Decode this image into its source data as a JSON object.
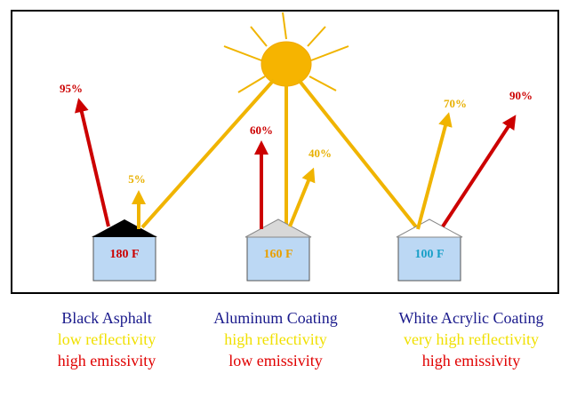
{
  "roofs": [
    {
      "temperature": "180 F",
      "emitted": "95%",
      "reflected": "5%",
      "name": "Black Asphalt",
      "reflectivity": "low reflectivity",
      "emissivity": "high emissivity"
    },
    {
      "temperature": "160 F",
      "emitted": "60%",
      "reflected": "40%",
      "name": "Aluminum Coating",
      "reflectivity": "high reflectivity",
      "emissivity": "low emissivity"
    },
    {
      "temperature": "100 F",
      "emitted": "90%",
      "reflected": "70%",
      "name": "White Acrylic Coating",
      "reflectivity": "very high reflectivity",
      "emissivity": "high emissivity"
    }
  ]
}
